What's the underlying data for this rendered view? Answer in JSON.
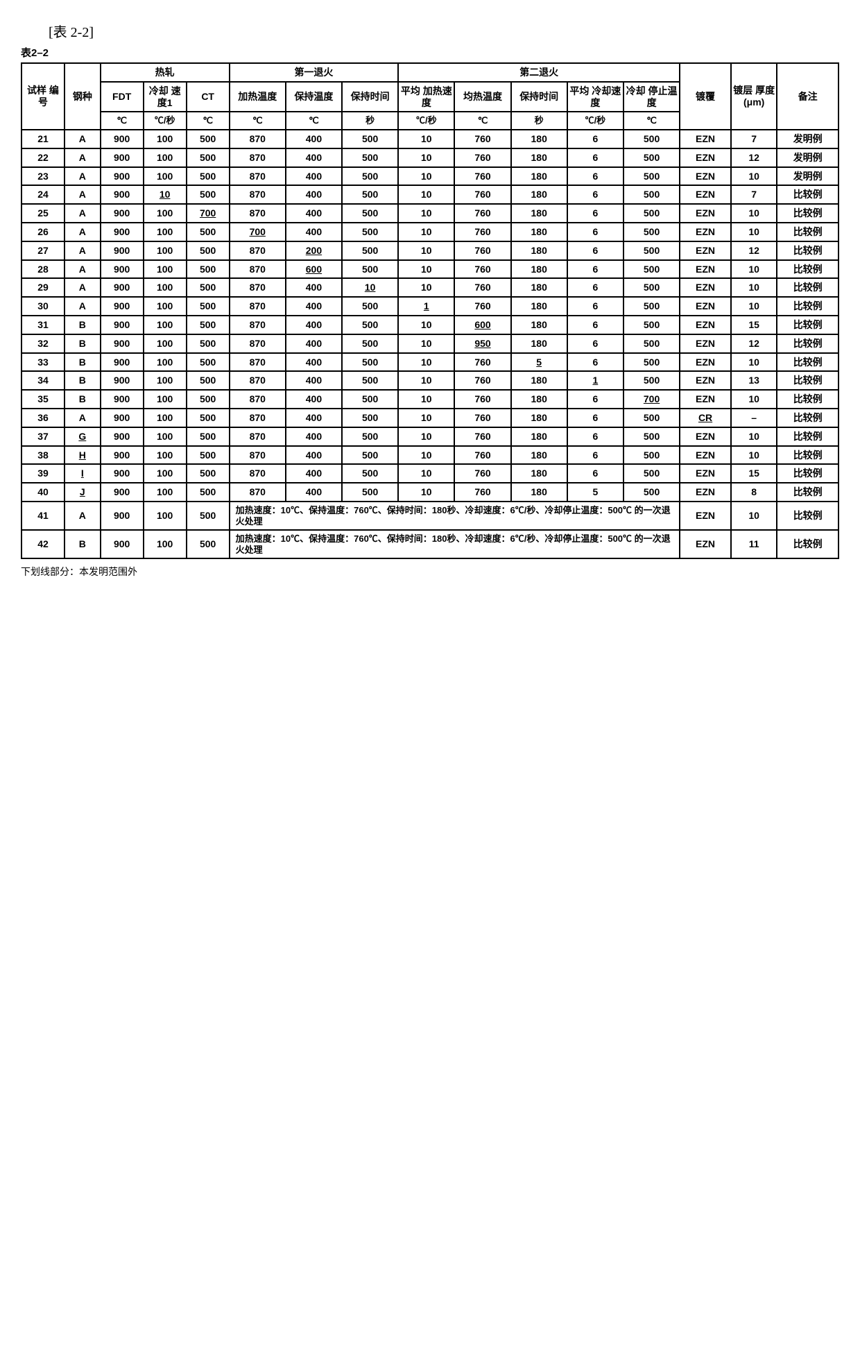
{
  "caption_bracket": "[表 2-2]",
  "caption_bold": "表2–2",
  "footnote": "下划线部分：本发明范围外",
  "headers": {
    "sample_no": "试样\n编号",
    "steel": "钢种",
    "hot_rolling": "热轧",
    "fdt": "FDT",
    "cooling_rate1": "冷却\n速度1",
    "ct": "CT",
    "anneal1": "第一退火",
    "a1_heat_temp": "加热温度",
    "a1_hold_temp": "保持温度",
    "a1_hold_time": "保持时间",
    "anneal2": "第二退火",
    "a2_heat_rate": "平均\n加热速度",
    "a2_soak_temp": "均热温度",
    "a2_hold_time": "保持时间",
    "a2_cool_rate": "平均\n冷却速度",
    "a2_cool_stop": "冷却\n停止温度",
    "plating": "镀覆",
    "thickness": "镀层\n厚度\n(μm)",
    "remark": "备注"
  },
  "units": {
    "degC": "℃",
    "degC_s": "℃/秒",
    "sec": "秒"
  },
  "remark_inv": "发明例",
  "remark_cmp": "比较例",
  "merged_note_41": "加热速度：10℃、保持温度：760℃、保持时间：180秒、冷却速度：6℃/秒、冷却停止温度：500℃ 的一次退火处理",
  "merged_note_42": "加热速度：10℃、保持温度：760℃、保持时间：180秒、冷却速度：6℃/秒、冷却停止温度：500℃ 的一次退火处理",
  "rows": [
    {
      "id": "21",
      "steel": "A",
      "fdt": "900",
      "cr1": "100",
      "ct": "500",
      "a1h": "870",
      "a1ht": "400",
      "a1t": "500",
      "a2hr": "10",
      "a2st": "760",
      "a2ht": "180",
      "a2cr": "6",
      "a2cs": "500",
      "plat": "EZN",
      "thk": "7",
      "rem": "发明例"
    },
    {
      "id": "22",
      "steel": "A",
      "fdt": "900",
      "cr1": "100",
      "ct": "500",
      "a1h": "870",
      "a1ht": "400",
      "a1t": "500",
      "a2hr": "10",
      "a2st": "760",
      "a2ht": "180",
      "a2cr": "6",
      "a2cs": "500",
      "plat": "EZN",
      "thk": "12",
      "rem": "发明例"
    },
    {
      "id": "23",
      "steel": "A",
      "fdt": "900",
      "cr1": "100",
      "ct": "500",
      "a1h": "870",
      "a1ht": "400",
      "a1t": "500",
      "a2hr": "10",
      "a2st": "760",
      "a2ht": "180",
      "a2cr": "6",
      "a2cs": "500",
      "plat": "EZN",
      "thk": "10",
      "rem": "发明例"
    },
    {
      "id": "24",
      "steel": "A",
      "fdt": "900",
      "cr1": "10",
      "cr1_u": true,
      "ct": "500",
      "a1h": "870",
      "a1ht": "400",
      "a1t": "500",
      "a2hr": "10",
      "a2st": "760",
      "a2ht": "180",
      "a2cr": "6",
      "a2cs": "500",
      "plat": "EZN",
      "thk": "7",
      "rem": "比较例"
    },
    {
      "id": "25",
      "steel": "A",
      "fdt": "900",
      "cr1": "100",
      "ct": "700",
      "ct_u": true,
      "a1h": "870",
      "a1ht": "400",
      "a1t": "500",
      "a2hr": "10",
      "a2st": "760",
      "a2ht": "180",
      "a2cr": "6",
      "a2cs": "500",
      "plat": "EZN",
      "thk": "10",
      "rem": "比较例"
    },
    {
      "id": "26",
      "steel": "A",
      "fdt": "900",
      "cr1": "100",
      "ct": "500",
      "a1h": "700",
      "a1h_u": true,
      "a1ht": "400",
      "a1t": "500",
      "a2hr": "10",
      "a2st": "760",
      "a2ht": "180",
      "a2cr": "6",
      "a2cs": "500",
      "plat": "EZN",
      "thk": "10",
      "rem": "比较例"
    },
    {
      "id": "27",
      "steel": "A",
      "fdt": "900",
      "cr1": "100",
      "ct": "500",
      "a1h": "870",
      "a1ht": "200",
      "a1ht_u": true,
      "a1t": "500",
      "a2hr": "10",
      "a2st": "760",
      "a2ht": "180",
      "a2cr": "6",
      "a2cs": "500",
      "plat": "EZN",
      "thk": "12",
      "rem": "比较例"
    },
    {
      "id": "28",
      "steel": "A",
      "fdt": "900",
      "cr1": "100",
      "ct": "500",
      "a1h": "870",
      "a1ht": "600",
      "a1ht_u": true,
      "a1t": "500",
      "a2hr": "10",
      "a2st": "760",
      "a2ht": "180",
      "a2cr": "6",
      "a2cs": "500",
      "plat": "EZN",
      "thk": "10",
      "rem": "比较例"
    },
    {
      "id": "29",
      "steel": "A",
      "fdt": "900",
      "cr1": "100",
      "ct": "500",
      "a1h": "870",
      "a1ht": "400",
      "a1t": "10",
      "a1t_u": true,
      "a2hr": "10",
      "a2st": "760",
      "a2ht": "180",
      "a2cr": "6",
      "a2cs": "500",
      "plat": "EZN",
      "thk": "10",
      "rem": "比较例"
    },
    {
      "id": "30",
      "steel": "A",
      "fdt": "900",
      "cr1": "100",
      "ct": "500",
      "a1h": "870",
      "a1ht": "400",
      "a1t": "500",
      "a2hr": "1",
      "a2hr_u": true,
      "a2st": "760",
      "a2ht": "180",
      "a2cr": "6",
      "a2cs": "500",
      "plat": "EZN",
      "thk": "10",
      "rem": "比较例"
    },
    {
      "id": "31",
      "steel": "B",
      "fdt": "900",
      "cr1": "100",
      "ct": "500",
      "a1h": "870",
      "a1ht": "400",
      "a1t": "500",
      "a2hr": "10",
      "a2st": "600",
      "a2st_u": true,
      "a2ht": "180",
      "a2cr": "6",
      "a2cs": "500",
      "plat": "EZN",
      "thk": "15",
      "rem": "比较例"
    },
    {
      "id": "32",
      "steel": "B",
      "fdt": "900",
      "cr1": "100",
      "ct": "500",
      "a1h": "870",
      "a1ht": "400",
      "a1t": "500",
      "a2hr": "10",
      "a2st": "950",
      "a2st_u": true,
      "a2ht": "180",
      "a2cr": "6",
      "a2cs": "500",
      "plat": "EZN",
      "thk": "12",
      "rem": "比较例"
    },
    {
      "id": "33",
      "steel": "B",
      "fdt": "900",
      "cr1": "100",
      "ct": "500",
      "a1h": "870",
      "a1ht": "400",
      "a1t": "500",
      "a2hr": "10",
      "a2st": "760",
      "a2ht": "5",
      "a2ht_u": true,
      "a2cr": "6",
      "a2cs": "500",
      "plat": "EZN",
      "thk": "10",
      "rem": "比较例"
    },
    {
      "id": "34",
      "steel": "B",
      "fdt": "900",
      "cr1": "100",
      "ct": "500",
      "a1h": "870",
      "a1ht": "400",
      "a1t": "500",
      "a2hr": "10",
      "a2st": "760",
      "a2ht": "180",
      "a2cr": "1",
      "a2cr_u": true,
      "a2cs": "500",
      "plat": "EZN",
      "thk": "13",
      "rem": "比较例"
    },
    {
      "id": "35",
      "steel": "B",
      "fdt": "900",
      "cr1": "100",
      "ct": "500",
      "a1h": "870",
      "a1ht": "400",
      "a1t": "500",
      "a2hr": "10",
      "a2st": "760",
      "a2ht": "180",
      "a2cr": "6",
      "a2cs": "700",
      "a2cs_u": true,
      "plat": "EZN",
      "thk": "10",
      "rem": "比较例"
    },
    {
      "id": "36",
      "steel": "A",
      "fdt": "900",
      "cr1": "100",
      "ct": "500",
      "a1h": "870",
      "a1ht": "400",
      "a1t": "500",
      "a2hr": "10",
      "a2st": "760",
      "a2ht": "180",
      "a2cr": "6",
      "a2cs": "500",
      "plat": "CR",
      "plat_u": true,
      "thk": "–",
      "rem": "比较例"
    },
    {
      "id": "37",
      "steel": "G",
      "steel_u": true,
      "fdt": "900",
      "cr1": "100",
      "ct": "500",
      "a1h": "870",
      "a1ht": "400",
      "a1t": "500",
      "a2hr": "10",
      "a2st": "760",
      "a2ht": "180",
      "a2cr": "6",
      "a2cs": "500",
      "plat": "EZN",
      "thk": "10",
      "rem": "比较例"
    },
    {
      "id": "38",
      "steel": "H",
      "steel_u": true,
      "fdt": "900",
      "cr1": "100",
      "ct": "500",
      "a1h": "870",
      "a1ht": "400",
      "a1t": "500",
      "a2hr": "10",
      "a2st": "760",
      "a2ht": "180",
      "a2cr": "6",
      "a2cs": "500",
      "plat": "EZN",
      "thk": "10",
      "rem": "比较例"
    },
    {
      "id": "39",
      "steel": "I",
      "steel_u": true,
      "fdt": "900",
      "cr1": "100",
      "ct": "500",
      "a1h": "870",
      "a1ht": "400",
      "a1t": "500",
      "a2hr": "10",
      "a2st": "760",
      "a2ht": "180",
      "a2cr": "6",
      "a2cs": "500",
      "plat": "EZN",
      "thk": "15",
      "rem": "比较例"
    },
    {
      "id": "40",
      "steel": "J",
      "steel_u": true,
      "fdt": "900",
      "cr1": "100",
      "ct": "500",
      "a1h": "870",
      "a1ht": "400",
      "a1t": "500",
      "a2hr": "10",
      "a2st": "760",
      "a2ht": "180",
      "a2cr": "5",
      "a2cs": "500",
      "plat": "EZN",
      "thk": "8",
      "rem": "比较例"
    },
    {
      "id": "41",
      "steel": "A",
      "fdt": "900",
      "cr1": "100",
      "ct": "500",
      "merged": true,
      "plat": "EZN",
      "thk": "10",
      "rem": "比较例"
    },
    {
      "id": "42",
      "steel": "B",
      "fdt": "900",
      "cr1": "100",
      "ct": "500",
      "merged": true,
      "plat": "EZN",
      "thk": "11",
      "rem": "比较例"
    }
  ]
}
